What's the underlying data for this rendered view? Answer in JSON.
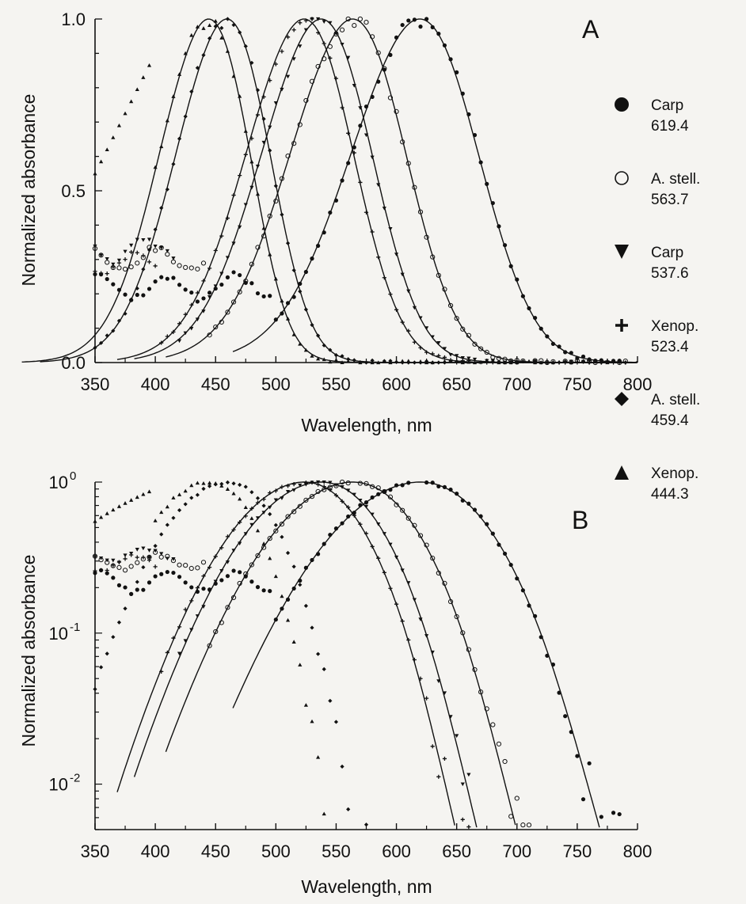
{
  "chart_data": [
    {
      "panel": "A",
      "type": "scatter",
      "scale": "linear",
      "xlabel": "Wavelength, nm",
      "ylabel": "Normalized absorbance",
      "xlim": [
        350,
        800
      ],
      "ylim": [
        0,
        1.0
      ],
      "xticks": [
        350,
        400,
        450,
        500,
        550,
        600,
        650,
        700,
        750,
        800
      ],
      "yticks": [
        {
          "value": 0.0,
          "label": "0.0"
        },
        {
          "value": 0.5,
          "label": "0.5"
        },
        {
          "value": 1.0,
          "label": "1.0"
        }
      ]
    },
    {
      "panel": "B",
      "type": "scatter",
      "scale": "log",
      "xlabel": "Wavelength, nm",
      "ylabel": "Normalized absorbance",
      "xlim": [
        350,
        800
      ],
      "ylim": [
        0.005,
        1.0
      ],
      "xticks": [
        350,
        400,
        450,
        500,
        550,
        600,
        650,
        700,
        750,
        800
      ],
      "yticks": [
        {
          "value": 1,
          "base": "10",
          "exp": "0"
        },
        {
          "value": 0.1,
          "base": "10",
          "exp": "-1"
        },
        {
          "value": 0.01,
          "base": "10",
          "exp": "-2"
        }
      ]
    }
  ],
  "series": [
    {
      "name": "Carp",
      "peak": "619.4",
      "lambda_max": 619.4,
      "marker": "filled-circle",
      "floor": 0.22
    },
    {
      "name": "A. stell.",
      "peak": "563.7",
      "lambda_max": 563.7,
      "marker": "open-circle",
      "floor": 0.3
    },
    {
      "name": "Carp",
      "peak": "537.6",
      "lambda_max": 537.6,
      "marker": "filled-triangle-down",
      "floor": 0.33
    },
    {
      "name": "Xenop.",
      "peak": "523.4",
      "lambda_max": 523.4,
      "marker": "plus",
      "floor": 0.29
    },
    {
      "name": "A. stell.",
      "peak": "459.4",
      "lambda_max": 459.4,
      "marker": "filled-diamond",
      "floor": 0.33
    },
    {
      "name": "Xenop.",
      "peak": "444.3",
      "lambda_max": 444.3,
      "marker": "filled-triangle-up",
      "floor": 0.29
    }
  ],
  "colors": {
    "ink": "#111111",
    "background": "#f5f4f1"
  }
}
